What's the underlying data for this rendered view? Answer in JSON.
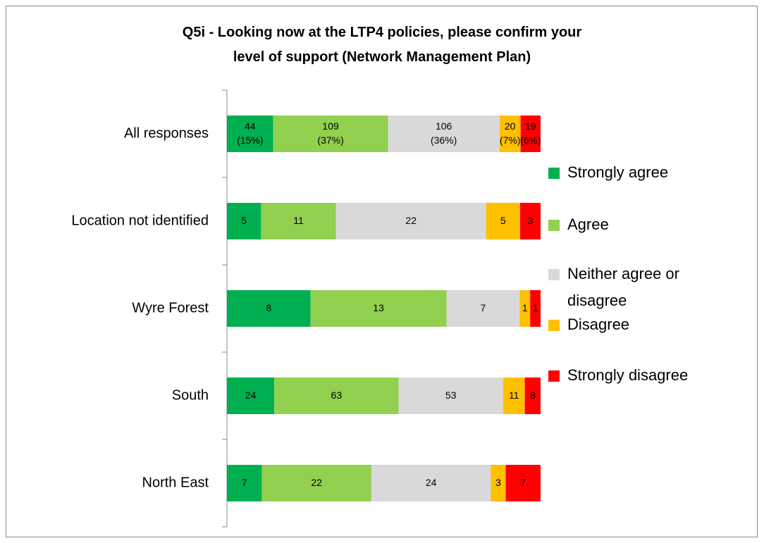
{
  "chart_data": {
    "type": "bar",
    "orientation": "horizontal",
    "stacking": "percent",
    "title": "Q5i - Looking now at the LTP4 policies, please confirm your level of support (Network Management Plan)",
    "categories": [
      "All responses",
      "Location not identified",
      "Wyre Forest",
      "South",
      "North East"
    ],
    "legend": "right",
    "series": [
      {
        "name": "Strongly agree",
        "color": "#00b050",
        "values": [
          44,
          5,
          8,
          24,
          7
        ],
        "value_labels": [
          "44 (15%)",
          "5",
          "8",
          "24",
          "7"
        ]
      },
      {
        "name": "Agree",
        "color": "#92d050",
        "values": [
          109,
          11,
          13,
          63,
          22
        ],
        "value_labels": [
          "109 (37%)",
          "11",
          "13",
          "63",
          "22"
        ]
      },
      {
        "name": "Neither agree or disagree",
        "color": "#d9d9d9",
        "values": [
          106,
          22,
          7,
          53,
          24
        ],
        "value_labels": [
          "106 (36%)",
          "22",
          "7",
          "53",
          "24"
        ]
      },
      {
        "name": "Disagree",
        "color": "#ffc000",
        "values": [
          20,
          5,
          1,
          11,
          3
        ],
        "value_labels": [
          "20 (7%)",
          "5",
          "1",
          "11",
          "3"
        ]
      },
      {
        "name": "Strongly disagree",
        "color": "#ff0000",
        "values": [
          19,
          3,
          1,
          8,
          7
        ],
        "value_labels": [
          "19 (6%)",
          "3",
          "1",
          "8",
          "7"
        ]
      }
    ]
  }
}
